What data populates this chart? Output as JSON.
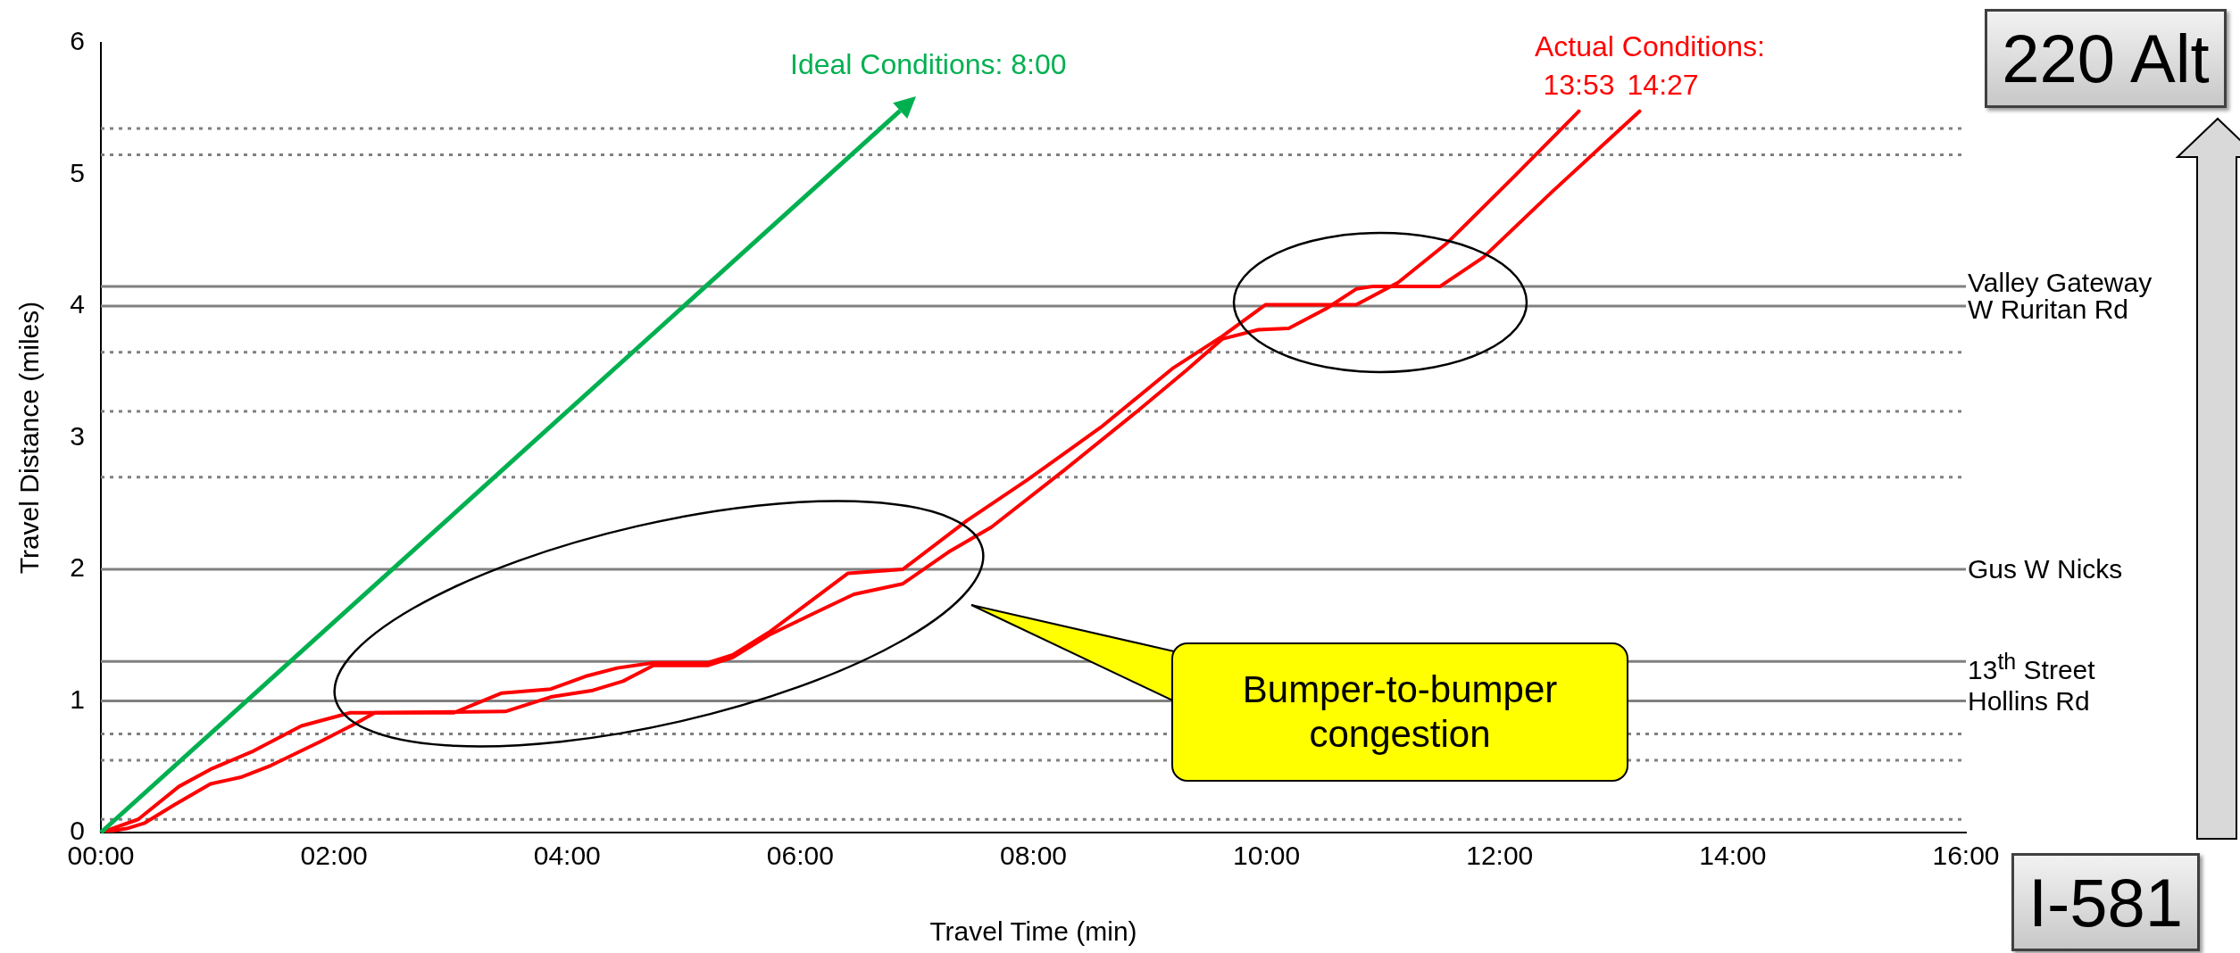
{
  "chart_data": {
    "type": "line",
    "xlabel": "Travel Time (min)",
    "ylabel": "Travel Distance (miles)",
    "xlim": [
      0,
      16
    ],
    "ylim": [
      0,
      6
    ],
    "xticks": [
      {
        "value": 0,
        "label": "00:00"
      },
      {
        "value": 2,
        "label": "02:00"
      },
      {
        "value": 4,
        "label": "04:00"
      },
      {
        "value": 6,
        "label": "06:00"
      },
      {
        "value": 8,
        "label": "08:00"
      },
      {
        "value": 10,
        "label": "10:00"
      },
      {
        "value": 12,
        "label": "12:00"
      },
      {
        "value": 14,
        "label": "14:00"
      },
      {
        "value": 16,
        "label": "16:00"
      }
    ],
    "yticks": [
      0,
      1,
      2,
      3,
      4,
      5,
      6
    ],
    "grid": false,
    "legend": false,
    "marker": "none",
    "line_style": "solid",
    "series": [
      {
        "name": "13:53",
        "color": "#ff0000",
        "x": [
          0,
          0.32,
          0.67,
          0.94,
          1.31,
          1.72,
          2.14,
          3.03,
          3.44,
          3.86,
          4.17,
          4.43,
          4.74,
          5.21,
          5.42,
          5.73,
          6.41,
          6.88,
          7.43,
          7.95,
          8.58,
          9.2,
          9.62,
          9.99,
          10.77,
          11.13,
          11.55,
          12.12,
          12.68
        ],
        "values": [
          0,
          0.1,
          0.35,
          0.48,
          0.62,
          0.81,
          0.91,
          0.91,
          1.06,
          1.09,
          1.19,
          1.25,
          1.29,
          1.29,
          1.35,
          1.52,
          1.97,
          2.0,
          2.37,
          2.68,
          3.08,
          3.53,
          3.77,
          4.01,
          4.01,
          4.18,
          4.48,
          4.98,
          5.48
        ]
      },
      {
        "name": "14:27",
        "color": "#ff0000",
        "x": [
          0,
          0.22,
          0.37,
          0.63,
          0.94,
          1.2,
          1.46,
          1.88,
          2.19,
          2.35,
          3.47,
          3.86,
          4.22,
          4.48,
          4.74,
          5.21,
          5.42,
          5.73,
          6.15,
          6.46,
          6.88,
          7.27,
          7.64,
          8.26,
          8.89,
          9.31,
          9.62,
          9.93,
          10.19,
          10.51,
          10.77,
          10.92,
          11.49,
          11.86,
          12.44,
          13.2
        ],
        "values": [
          0,
          0.03,
          0.07,
          0.21,
          0.37,
          0.42,
          0.51,
          0.69,
          0.83,
          0.91,
          0.92,
          1.03,
          1.08,
          1.15,
          1.27,
          1.27,
          1.33,
          1.5,
          1.68,
          1.81,
          1.89,
          2.13,
          2.32,
          2.75,
          3.2,
          3.51,
          3.75,
          3.82,
          3.83,
          3.98,
          4.13,
          4.15,
          4.15,
          4.37,
          4.86,
          5.48
        ]
      }
    ],
    "ref_lines": [
      {
        "axis": "y",
        "value": 4.15,
        "label": "Valley Gateway",
        "color": "#808080",
        "line_style": "solid"
      },
      {
        "axis": "y",
        "value": 4.0,
        "label": "W Ruritan Rd",
        "color": "#808080",
        "line_style": "solid"
      },
      {
        "axis": "y",
        "value": 2.0,
        "label": "Gus W Nicks",
        "color": "#808080",
        "line_style": "solid"
      },
      {
        "axis": "y",
        "value": 1.3,
        "label": "13$^{th}$ Street",
        "color": "#808080",
        "line_style": "solid"
      },
      {
        "axis": "y",
        "value": 1.0,
        "label": "Hollins Rd",
        "color": "#808080",
        "line_style": "solid"
      },
      {
        "axis": "y",
        "value": 5.35,
        "color": "#808080",
        "line_style": "dotted"
      },
      {
        "axis": "y",
        "value": 5.15,
        "color": "#808080",
        "line_style": "dotted"
      },
      {
        "axis": "y",
        "value": 3.65,
        "color": "#808080",
        "line_style": "dotted"
      },
      {
        "axis": "y",
        "value": 3.2,
        "color": "#808080",
        "line_style": "dotted"
      },
      {
        "axis": "y",
        "value": 2.7,
        "color": "#808080",
        "line_style": "dotted"
      },
      {
        "axis": "y",
        "value": 0.75,
        "color": "#808080",
        "line_style": "dotted"
      },
      {
        "axis": "y",
        "value": 0.55,
        "color": "#808080",
        "line_style": "dotted"
      },
      {
        "axis": "y",
        "value": 0.1,
        "color": "#808080",
        "line_style": "dotted"
      }
    ],
    "annotations": [
      "Ideal Conditions: 8:00",
      "Actual Conditions:",
      "Bumper-to-bumper congestion",
      "220 Alt",
      "I-581"
    ]
  }
}
